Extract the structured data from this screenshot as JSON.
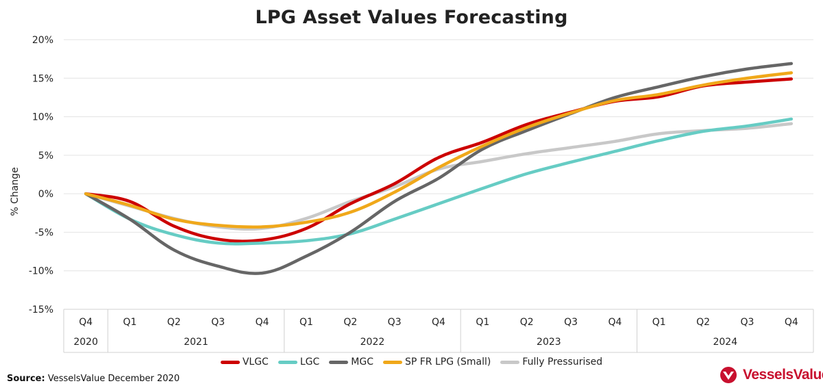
{
  "colors": {
    "vlgc": "#cc0000",
    "lgc": "#66ccc4",
    "mgc": "#666666",
    "sp_fr_lpg": "#f0a81a",
    "fully_pressurised": "#c8c8c8",
    "brand": "#c8102e"
  },
  "source_label": "Source:",
  "source_text": "VesselsValue December 2020",
  "logo_text": "VesselsValue",
  "chart_data": {
    "type": "line",
    "title": "LPG Asset Values Forecasting",
    "xlabel": "",
    "ylabel": "% Change",
    "ylim": [
      -15,
      20
    ],
    "yticks": [
      -15,
      -10,
      -5,
      0,
      5,
      10,
      15,
      20
    ],
    "ytick_labels": [
      "-15%",
      "-10%",
      "-5%",
      "0%",
      "5%",
      "10%",
      "15%",
      "20%"
    ],
    "grid": true,
    "legend": "bottom",
    "categories": [
      "Q4",
      "Q1",
      "Q2",
      "Q3",
      "Q4",
      "Q1",
      "Q2",
      "Q3",
      "Q4",
      "Q1",
      "Q2",
      "Q3",
      "Q4",
      "Q1",
      "Q2",
      "Q3",
      "Q4"
    ],
    "year_groups": [
      {
        "label": "2020",
        "span": 1
      },
      {
        "label": "2021",
        "span": 4
      },
      {
        "label": "2022",
        "span": 4
      },
      {
        "label": "2023",
        "span": 4
      },
      {
        "label": "2024",
        "span": 4
      }
    ],
    "series": [
      {
        "name": "VLGC",
        "color_key": "vlgc",
        "values": [
          0,
          -1.0,
          -4.2,
          -5.9,
          -6.0,
          -4.5,
          -1.3,
          1.3,
          4.7,
          6.7,
          9.0,
          10.6,
          12.0,
          12.6,
          14.0,
          14.5,
          14.9
        ]
      },
      {
        "name": "LGC",
        "color_key": "lgc",
        "values": [
          0,
          -3.3,
          -5.3,
          -6.4,
          -6.4,
          -6.1,
          -5.2,
          -3.3,
          -1.3,
          0.7,
          2.6,
          4.1,
          5.5,
          6.9,
          8.1,
          8.8,
          9.7
        ]
      },
      {
        "name": "MGC",
        "color_key": "mgc",
        "values": [
          0,
          -3.3,
          -7.3,
          -9.4,
          -10.3,
          -8.1,
          -5.0,
          -1.0,
          2.0,
          5.8,
          8.2,
          10.4,
          12.5,
          13.9,
          15.2,
          16.2,
          16.9
        ]
      },
      {
        "name": "SP FR LPG (Small)",
        "color_key": "sp_fr_lpg",
        "values": [
          0,
          -1.5,
          -3.3,
          -4.1,
          -4.3,
          -3.7,
          -2.4,
          0.2,
          3.4,
          6.2,
          8.6,
          10.5,
          12.1,
          12.9,
          14.1,
          15.0,
          15.7
        ]
      },
      {
        "name": "Fully Pressurised",
        "color_key": "fully_pressurised",
        "values": [
          0,
          -1.6,
          -3.2,
          -4.3,
          -4.5,
          -3.2,
          -1.0,
          0.9,
          3.2,
          4.2,
          5.2,
          6.0,
          6.8,
          7.8,
          8.2,
          8.5,
          9.1
        ]
      }
    ]
  }
}
